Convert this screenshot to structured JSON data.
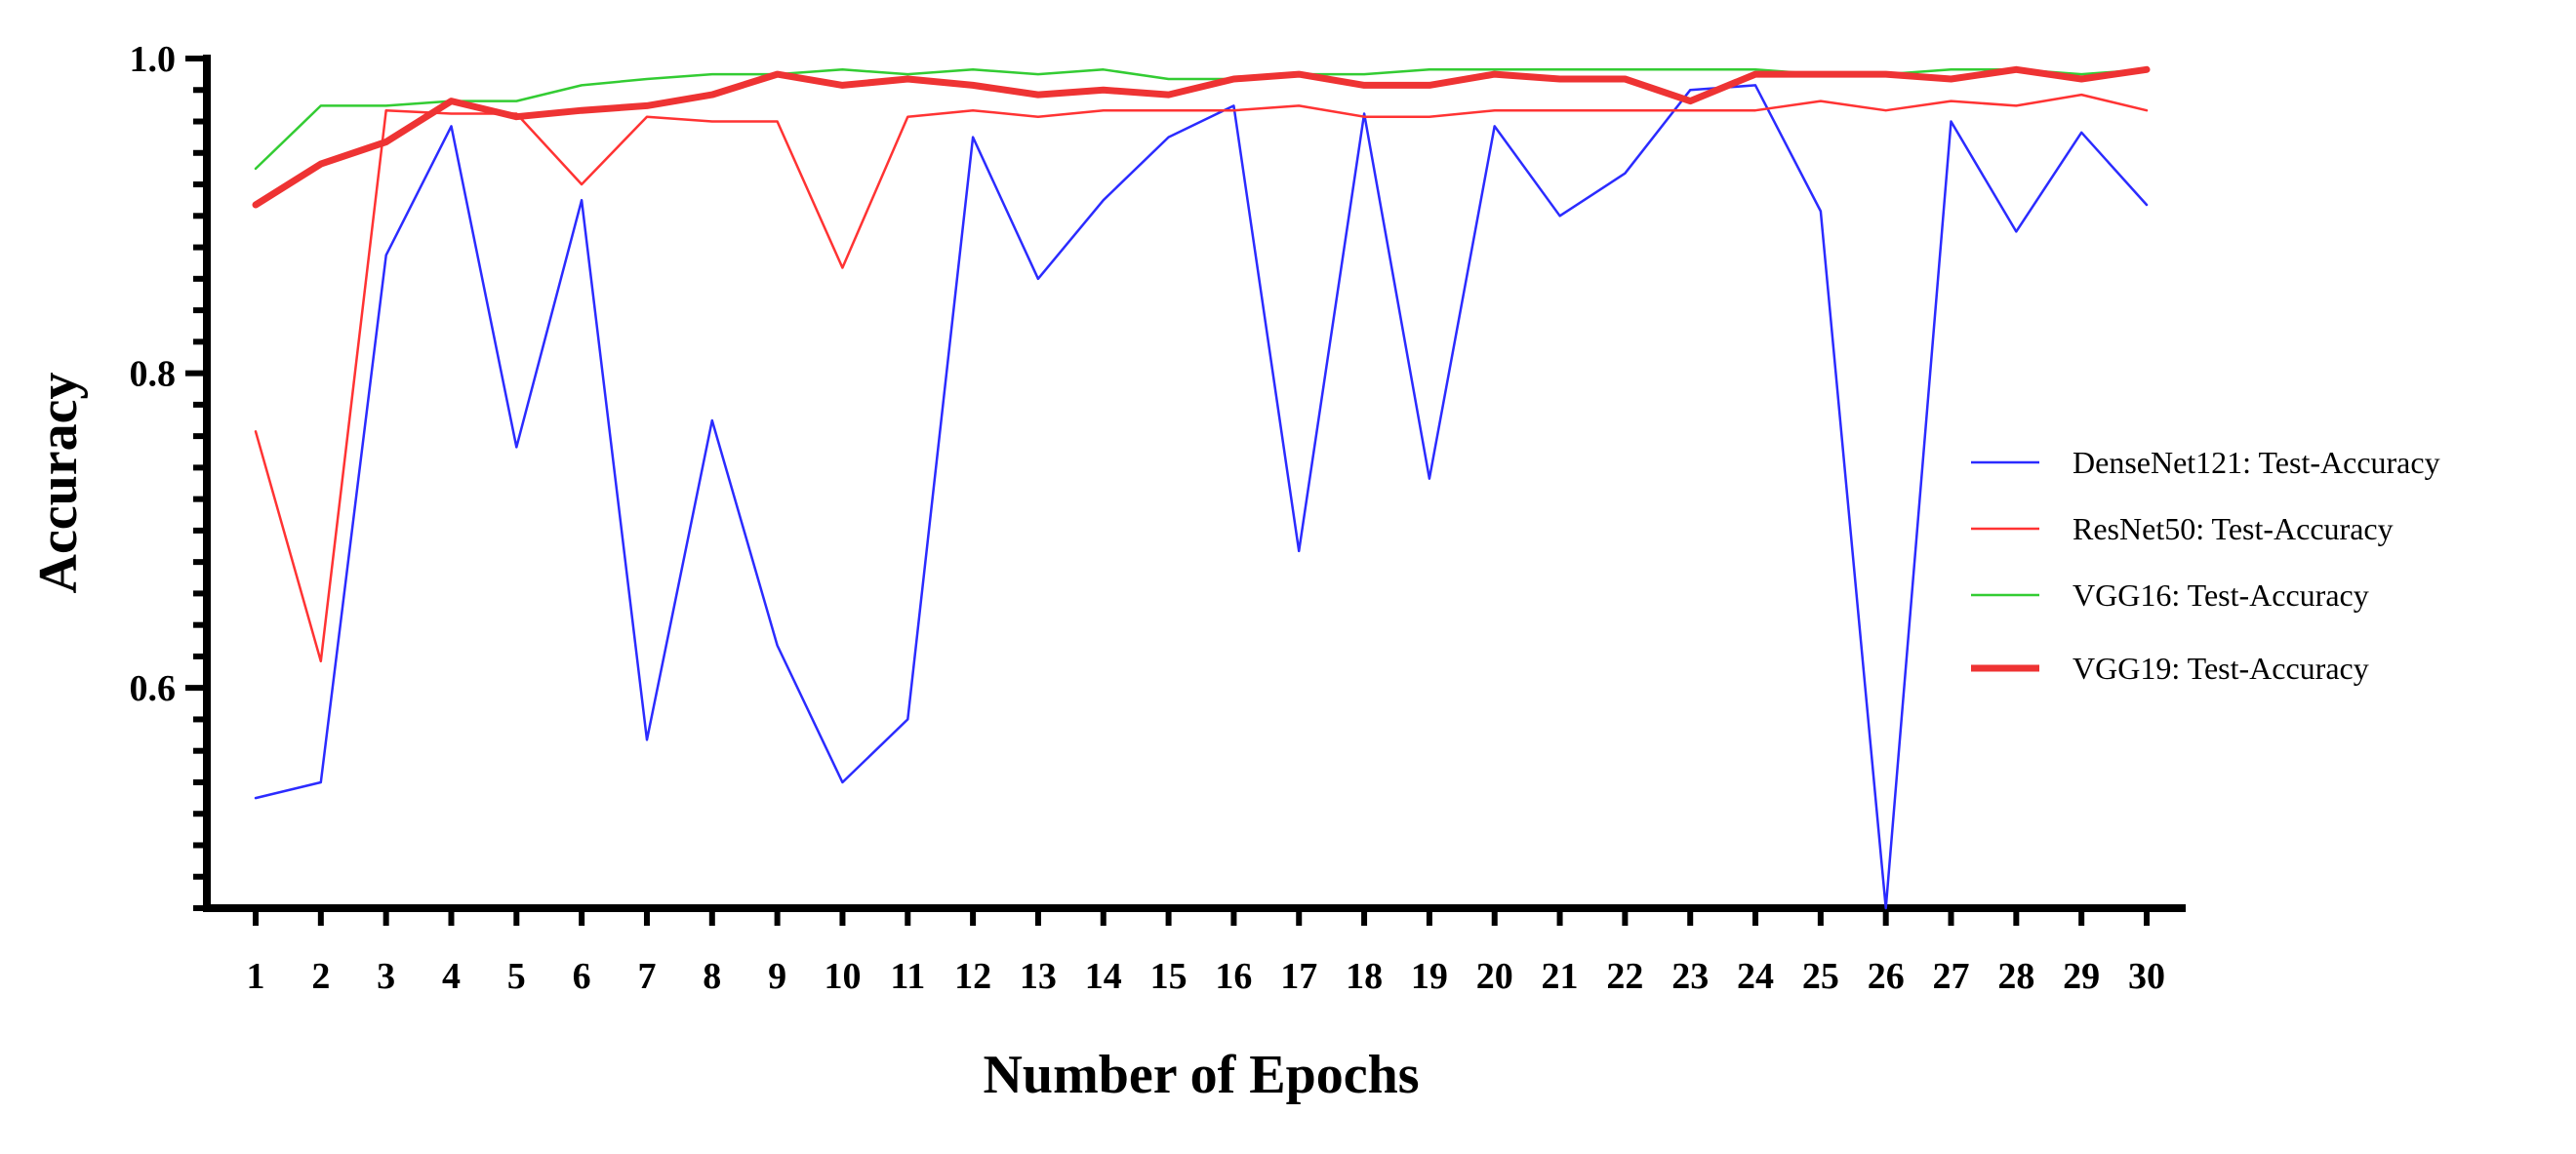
{
  "chart_data": {
    "type": "line",
    "title": "",
    "xlabel": "Number of Epochs",
    "ylabel": "Accuracy",
    "x": [
      1,
      2,
      3,
      4,
      5,
      6,
      7,
      8,
      9,
      10,
      11,
      12,
      13,
      14,
      15,
      16,
      17,
      18,
      19,
      20,
      21,
      22,
      23,
      24,
      25,
      26,
      27,
      28,
      29,
      30
    ],
    "xlim": [
      1,
      30
    ],
    "ylim": [
      0.46,
      1.0
    ],
    "yticks": [
      "0.6",
      "0.8",
      "1.0"
    ],
    "ytick_values": [
      0.6,
      0.8,
      1.0
    ],
    "grid": false,
    "legend_position": "right",
    "series": [
      {
        "name": "DenseNet121: Test-Accuracy",
        "color": "#2b2bff",
        "width": "thin",
        "values": [
          0.53,
          0.54,
          0.875,
          0.957,
          0.753,
          0.91,
          0.567,
          0.77,
          0.627,
          0.54,
          0.58,
          0.95,
          0.86,
          0.91,
          0.95,
          0.97,
          0.687,
          0.965,
          0.733,
          0.957,
          0.9,
          0.927,
          0.98,
          0.983,
          0.903,
          0.46,
          0.96,
          0.89,
          0.953,
          0.907
        ]
      },
      {
        "name": "ResNet50: Test-Accuracy",
        "color": "#ff3333",
        "width": "thin",
        "values": [
          0.763,
          0.617,
          0.967,
          0.965,
          0.965,
          0.92,
          0.963,
          0.96,
          0.96,
          0.867,
          0.963,
          0.967,
          0.963,
          0.967,
          0.967,
          0.967,
          0.97,
          0.963,
          0.963,
          0.967,
          0.967,
          0.967,
          0.967,
          0.967,
          0.973,
          0.967,
          0.973,
          0.97,
          0.977,
          0.967
        ]
      },
      {
        "name": "VGG16: Test-Accuracy",
        "color": "#33cc33",
        "width": "thin",
        "values": [
          0.93,
          0.97,
          0.97,
          0.973,
          0.973,
          0.983,
          0.987,
          0.99,
          0.99,
          0.993,
          0.99,
          0.993,
          0.99,
          0.993,
          0.987,
          0.987,
          0.99,
          0.99,
          0.993,
          0.993,
          0.993,
          0.993,
          0.993,
          0.993,
          0.99,
          0.99,
          0.993,
          0.993,
          0.99,
          0.993
        ]
      },
      {
        "name": "VGG19: Test-Accuracy",
        "color": "#ee3333",
        "width": "thick",
        "values": [
          0.907,
          0.933,
          0.947,
          0.973,
          0.963,
          0.967,
          0.97,
          0.977,
          0.99,
          0.983,
          0.987,
          0.983,
          0.977,
          0.98,
          0.977,
          0.987,
          0.99,
          0.983,
          0.983,
          0.99,
          0.987,
          0.987,
          0.973,
          0.99,
          0.99,
          0.99,
          0.987,
          0.993,
          0.987,
          0.993
        ]
      }
    ]
  }
}
